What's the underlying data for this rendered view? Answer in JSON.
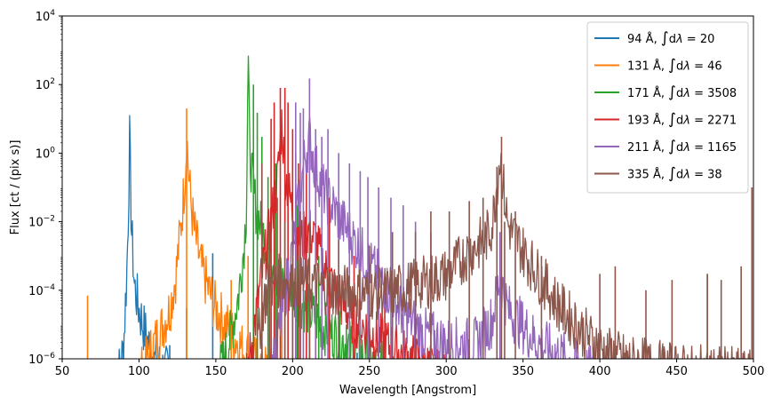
{
  "chart_data": {
    "type": "line",
    "xlabel": "Wavelength [Angstrom]",
    "ylabel": "Flux [ct / (pix s)]",
    "xlim": [
      50,
      500
    ],
    "ylim": [
      1e-06,
      10000.0
    ],
    "yscale": "log",
    "xticks": [
      50,
      100,
      150,
      200,
      250,
      300,
      350,
      400,
      450,
      500
    ],
    "yticks": [
      {
        "value": 1e-06,
        "base": "10",
        "exp": "−6"
      },
      {
        "value": 0.0001,
        "base": "10",
        "exp": "−4"
      },
      {
        "value": 0.01,
        "base": "10",
        "exp": "−2"
      },
      {
        "value": 1,
        "base": "10",
        "exp": "0"
      },
      {
        "value": 100,
        "base": "10",
        "exp": "2"
      },
      {
        "value": 10000,
        "base": "10",
        "exp": "4"
      }
    ],
    "legend_position": "top-right",
    "series": [
      {
        "name": "94 Å, ∫dλ = 20",
        "label_prefix": "94 Å, ",
        "integral": "20",
        "color": "#1f77b4",
        "points": [
          [
            84,
            1e-06
          ],
          [
            88,
            2e-06
          ],
          [
            90,
            1e-05
          ],
          [
            92,
            0.001
          ],
          [
            93,
            0.05
          ],
          [
            93.9,
            9
          ],
          [
            95,
            0.03
          ],
          [
            97,
            0.0005
          ],
          [
            100,
            0.0001
          ],
          [
            103,
            3e-05
          ],
          [
            106,
            1e-05
          ],
          [
            110,
            3e-06
          ],
          [
            115,
            2e-06
          ],
          [
            122,
            1e-06
          ]
        ],
        "lines": [
          [
            148,
            0.0012
          ],
          [
            131,
            3e-05
          ],
          [
            171,
            2e-06
          ],
          [
            180,
            2e-06
          ],
          [
            211,
            2e-06
          ],
          [
            193,
            1.5e-06
          ],
          [
            242,
            1.5e-06
          ],
          [
            120,
            2.5e-06
          ]
        ]
      },
      {
        "name": "131 Å, ∫dλ = 46",
        "label_prefix": "131 Å, ",
        "integral": "46",
        "color": "#ff7f0e",
        "points": [
          [
            100,
            1e-06
          ],
          [
            105,
            3e-06
          ],
          [
            110,
            1e-05
          ],
          [
            115,
            3e-05
          ],
          [
            120,
            0.0001
          ],
          [
            124,
            0.001
          ],
          [
            127,
            0.02
          ],
          [
            129,
            0.2
          ],
          [
            130.5,
            2
          ],
          [
            131,
            20
          ],
          [
            132,
            1.5
          ],
          [
            134,
            0.1
          ],
          [
            136,
            0.02
          ],
          [
            140,
            0.002
          ],
          [
            145,
            0.0004
          ],
          [
            150,
            0.0001
          ],
          [
            160,
            2e-05
          ],
          [
            170,
            5e-06
          ],
          [
            180,
            2e-06
          ],
          [
            190,
            1e-06
          ]
        ],
        "lines": [
          [
            66.5,
            7e-05
          ],
          [
            131,
            20
          ],
          [
            160,
            0.0002
          ],
          [
            171,
            0.001
          ],
          [
            193,
            0.0001
          ],
          [
            211,
            0.0001
          ],
          [
            480,
            1e-06
          ],
          [
            450,
            1e-06
          ]
        ]
      },
      {
        "name": "171 Å, ∫dλ = 3508",
        "label_prefix": "171 Å, ",
        "integral": "3508",
        "color": "#2ca02c",
        "points": [
          [
            150,
            1e-06
          ],
          [
            155,
            3e-06
          ],
          [
            160,
            2e-05
          ],
          [
            165,
            0.0003
          ],
          [
            168,
            0.005
          ],
          [
            170,
            0.1
          ],
          [
            171,
            3500
          ],
          [
            172,
            5
          ],
          [
            174,
            0.5
          ],
          [
            176,
            0.1
          ],
          [
            180,
            0.02
          ],
          [
            185,
            0.005
          ],
          [
            190,
            0.001
          ],
          [
            200,
            0.0003
          ],
          [
            210,
            0.0001
          ],
          [
            220,
            3e-05
          ],
          [
            235,
            1e-05
          ],
          [
            250,
            3e-06
          ],
          [
            270,
            1e-06
          ]
        ],
        "lines": [
          [
            174.5,
            100
          ],
          [
            177,
            15
          ],
          [
            180,
            3
          ],
          [
            184,
            0.2
          ],
          [
            189,
            0.5
          ],
          [
            195,
            0.05
          ],
          [
            203,
            0.03
          ],
          [
            217,
            0.001
          ],
          [
            235,
            1e-05
          ],
          [
            285,
            1e-06
          ],
          [
            335,
            0.003
          ],
          [
            470,
            0.0003
          ]
        ]
      },
      {
        "name": "193 Å, ∫dλ = 2271",
        "label_prefix": "193 Å, ",
        "integral": "2271",
        "color": "#d62728",
        "points": [
          [
            170,
            1e-06
          ],
          [
            175,
            3e-05
          ],
          [
            180,
            0.001
          ],
          [
            185,
            0.02
          ],
          [
            190,
            0.5
          ],
          [
            193,
            30
          ],
          [
            195,
            1
          ],
          [
            198,
            0.2
          ],
          [
            202,
            0.02
          ],
          [
            206,
            0.01
          ],
          [
            210,
            0.02
          ],
          [
            215,
            0.01
          ],
          [
            220,
            0.002
          ],
          [
            230,
            0.0002
          ],
          [
            240,
            5e-05
          ],
          [
            260,
            1e-05
          ],
          [
            280,
            3e-06
          ],
          [
            300,
            1e-06
          ]
        ],
        "lines": [
          [
            186,
            10
          ],
          [
            188,
            30
          ],
          [
            192,
            80
          ],
          [
            195,
            80
          ],
          [
            197,
            30
          ],
          [
            200,
            5
          ],
          [
            202,
            1
          ],
          [
            203.8,
            0.5
          ],
          [
            209,
            0.5
          ],
          [
            215,
            0.2
          ],
          [
            224,
            0.05
          ],
          [
            240,
            0.001
          ],
          [
            260,
            0.0002
          ]
        ]
      },
      {
        "name": "211 Å, ∫dλ = 1165",
        "label_prefix": "211 Å, ",
        "integral": "1165",
        "color": "#9467bd",
        "points": [
          [
            185,
            1e-06
          ],
          [
            190,
            1e-05
          ],
          [
            195,
            0.0003
          ],
          [
            200,
            0.005
          ],
          [
            205,
            0.3
          ],
          [
            208,
            3
          ],
          [
            211,
            10
          ],
          [
            214,
            2
          ],
          [
            218,
            0.5
          ],
          [
            222,
            0.2
          ],
          [
            230,
            0.05
          ],
          [
            240,
            0.01
          ],
          [
            250,
            0.002
          ],
          [
            260,
            0.0005
          ],
          [
            270,
            0.0001
          ],
          [
            285,
            2e-05
          ],
          [
            300,
            1e-05
          ],
          [
            320,
            1e-05
          ],
          [
            330,
            5e-05
          ],
          [
            335,
            0.001
          ],
          [
            340,
            0.0001
          ],
          [
            360,
            1e-05
          ],
          [
            380,
            3e-06
          ],
          [
            400,
            1e-06
          ]
        ],
        "lines": [
          [
            211,
            150
          ],
          [
            202,
            30
          ],
          [
            205,
            15
          ],
          [
            207,
            20
          ],
          [
            215,
            5
          ],
          [
            219,
            3
          ],
          [
            223,
            5
          ],
          [
            230,
            1
          ],
          [
            237,
            0.5
          ],
          [
            244,
            0.3
          ],
          [
            249,
            0.2
          ],
          [
            256,
            0.1
          ],
          [
            264,
            0.05
          ],
          [
            272,
            0.03
          ],
          [
            280,
            0.01
          ],
          [
            290,
            0.005
          ],
          [
            335,
            0.005
          ]
        ]
      },
      {
        "name": "335 Å, ∫dλ = 38",
        "label_prefix": "335 Å, ",
        "integral": "38",
        "color": "#8c564b",
        "points": [
          [
            175,
            1e-06
          ],
          [
            180,
            0.0001
          ],
          [
            185,
            0.0005
          ],
          [
            195,
            0.0008
          ],
          [
            205,
            0.0006
          ],
          [
            215,
            0.0005
          ],
          [
            225,
            0.0004
          ],
          [
            240,
            0.0003
          ],
          [
            260,
            0.0003
          ],
          [
            280,
            0.0005
          ],
          [
            300,
            0.001
          ],
          [
            315,
            0.005
          ],
          [
            325,
            0.01
          ],
          [
            330,
            0.03
          ],
          [
            335,
            3
          ],
          [
            340,
            0.03
          ],
          [
            350,
            0.005
          ],
          [
            360,
            0.001
          ],
          [
            375,
            0.0001
          ],
          [
            390,
            2e-05
          ],
          [
            405,
            5e-06
          ],
          [
            420,
            3e-06
          ],
          [
            440,
            2e-06
          ],
          [
            460,
            1.5e-06
          ],
          [
            480,
            1.5e-06
          ],
          [
            500,
            1e-06
          ]
        ],
        "lines": [
          [
            180,
            0.5
          ],
          [
            185,
            0.01
          ],
          [
            190,
            0.05
          ],
          [
            195,
            0.01
          ],
          [
            200,
            0.02
          ],
          [
            205,
            0.02
          ],
          [
            211,
            0.01
          ],
          [
            230,
            0.003
          ],
          [
            250,
            0.002
          ],
          [
            265,
            0.005
          ],
          [
            280,
            0.005
          ],
          [
            290,
            0.02
          ],
          [
            302,
            0.02
          ],
          [
            315,
            0.04
          ],
          [
            324,
            0.05
          ],
          [
            333,
            0.4
          ],
          [
            336,
            3
          ],
          [
            338,
            0.01
          ],
          [
            345,
            0.02
          ],
          [
            362,
            0.001
          ],
          [
            400,
            0.0003
          ],
          [
            410,
            0.0005
          ],
          [
            430,
            0.0001
          ],
          [
            447,
            0.0002
          ],
          [
            470,
            0.0003
          ],
          [
            479,
            0.0002
          ],
          [
            492,
            0.0005
          ],
          [
            499,
            0.1
          ]
        ]
      }
    ]
  }
}
